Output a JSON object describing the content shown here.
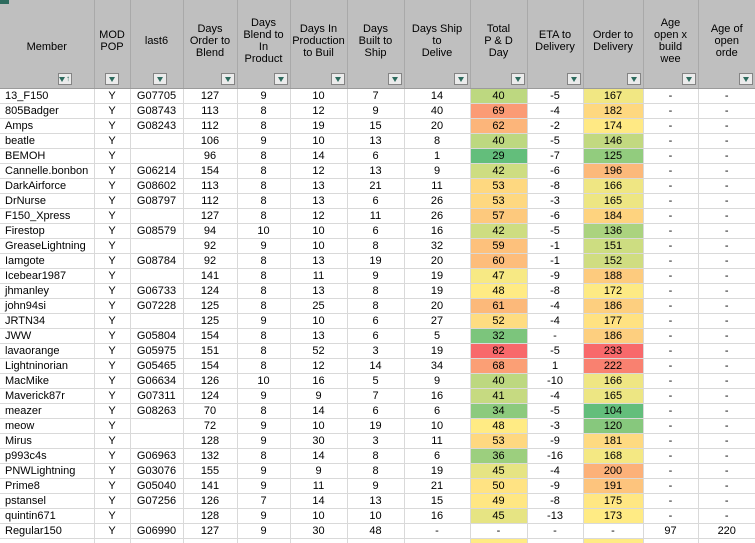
{
  "header": {
    "columns": [
      {
        "key": "member",
        "label": "Member",
        "sorted_ascending": true
      },
      {
        "key": "mod_pop",
        "label": "MOD\nPOP"
      },
      {
        "key": "last6",
        "label": "last6"
      },
      {
        "key": "days_order_to_blend",
        "label": "Days\nOrder to\nBlend"
      },
      {
        "key": "days_blend_to_in_production",
        "label": "Days\nBlend to\nIn\nProduct"
      },
      {
        "key": "days_in_production_to_build",
        "label": "Days In\nProduction\nto Buil"
      },
      {
        "key": "days_built_to_ship",
        "label": "Days\nBuilt to\nShip"
      },
      {
        "key": "days_ship_to_deliver",
        "label": "Days Ship\nto\nDelive"
      },
      {
        "key": "total_pd_days",
        "label": "Total\nP & D\nDay"
      },
      {
        "key": "eta_to_delivery",
        "label": "ETA to\nDelivery"
      },
      {
        "key": "order_to_delivery",
        "label": "Order to\nDelivery"
      },
      {
        "key": "age_open_x_build_weeks",
        "label": "Age\nopen x\nbuild\nwee"
      },
      {
        "key": "age_of_open_orders",
        "label": "Age of\nopen\norde"
      }
    ]
  },
  "colors": {
    "header_bg": "#BFBFBF",
    "teal_accent": "#2E6B5E",
    "gridline": "#D9D9D9",
    "scale_min_color": "#63BE7B",
    "scale_mid_color": "#FFEB84",
    "scale_max_color": "#F8696B"
  },
  "conditional_scales": {
    "total_pd_days": {
      "col": 8,
      "min": 29,
      "mid": 48,
      "max": 82
    },
    "order_to_delivery": {
      "col": 10,
      "min": 104,
      "mid": 173,
      "max": 233
    }
  },
  "rows": [
    [
      "13_F150",
      "Y",
      "G07705",
      127,
      9,
      10,
      7,
      14,
      40,
      -5,
      167,
      "-",
      "-"
    ],
    [
      "805Badger",
      "Y",
      "G08743",
      113,
      8,
      12,
      9,
      40,
      69,
      -4,
      182,
      "-",
      "-"
    ],
    [
      "Amps",
      "Y",
      "G08243",
      112,
      8,
      19,
      15,
      20,
      62,
      -2,
      174,
      "-",
      "-"
    ],
    [
      "beatle",
      "Y",
      "",
      106,
      9,
      10,
      13,
      8,
      40,
      -5,
      146,
      "-",
      "-"
    ],
    [
      "BEMOH",
      "Y",
      "",
      96,
      8,
      14,
      6,
      1,
      29,
      -7,
      125,
      "-",
      "-"
    ],
    [
      "Cannelle.bonbon",
      "Y",
      "G06214",
      154,
      8,
      12,
      13,
      9,
      42,
      -6,
      196,
      "-",
      "-"
    ],
    [
      "DarkAirforce",
      "Y",
      "G08602",
      113,
      8,
      13,
      21,
      11,
      53,
      -8,
      166,
      "-",
      "-"
    ],
    [
      "DrNurse",
      "Y",
      "G08797",
      112,
      8,
      13,
      6,
      26,
      53,
      -3,
      165,
      "-",
      "-"
    ],
    [
      "F150_Xpress",
      "Y",
      "",
      127,
      8,
      12,
      11,
      26,
      57,
      -6,
      184,
      "-",
      "-"
    ],
    [
      "Firestop",
      "Y",
      "G08579",
      94,
      10,
      10,
      6,
      16,
      42,
      -5,
      136,
      "-",
      "-"
    ],
    [
      "GreaseLightning",
      "Y",
      "",
      92,
      9,
      10,
      8,
      32,
      59,
      -1,
      151,
      "-",
      "-"
    ],
    [
      "Iamgote",
      "Y",
      "G08784",
      92,
      8,
      13,
      19,
      20,
      60,
      -1,
      152,
      "-",
      "-"
    ],
    [
      "Icebear1987",
      "Y",
      "",
      141,
      8,
      11,
      9,
      19,
      47,
      -9,
      188,
      "-",
      "-"
    ],
    [
      "jhmanley",
      "Y",
      "G06733",
      124,
      8,
      13,
      8,
      19,
      48,
      -8,
      172,
      "-",
      "-"
    ],
    [
      "john94si",
      "Y",
      "G07228",
      125,
      8,
      25,
      8,
      20,
      61,
      -4,
      186,
      "-",
      "-"
    ],
    [
      "JRTN34",
      "Y",
      "",
      125,
      9,
      10,
      6,
      27,
      52,
      -4,
      177,
      "-",
      "-"
    ],
    [
      "JWW",
      "Y",
      "G05804",
      154,
      8,
      13,
      6,
      5,
      32,
      "-",
      186,
      "-",
      "-"
    ],
    [
      "lavaorange",
      "Y",
      "G05975",
      151,
      8,
      52,
      3,
      19,
      82,
      -5,
      233,
      "-",
      "-"
    ],
    [
      "Lightninorian",
      "Y",
      "G05465",
      154,
      8,
      12,
      14,
      34,
      68,
      1,
      222,
      "-",
      "-"
    ],
    [
      "MacMike",
      "Y",
      "G06634",
      126,
      10,
      16,
      5,
      9,
      40,
      -10,
      166,
      "-",
      "-"
    ],
    [
      "Maverick87r",
      "Y",
      "G07311",
      124,
      9,
      9,
      7,
      16,
      41,
      -4,
      165,
      "-",
      "-"
    ],
    [
      "meazer",
      "Y",
      "G08263",
      70,
      8,
      14,
      6,
      6,
      34,
      -5,
      104,
      "-",
      "-"
    ],
    [
      "meow",
      "Y",
      "",
      72,
      9,
      10,
      19,
      10,
      48,
      -3,
      120,
      "-",
      "-"
    ],
    [
      "Mirus",
      "Y",
      "",
      128,
      9,
      30,
      3,
      11,
      53,
      -9,
      181,
      "-",
      "-"
    ],
    [
      "p993c4s",
      "Y",
      "G06963",
      132,
      8,
      14,
      8,
      6,
      36,
      -16,
      168,
      "-",
      "-"
    ],
    [
      "PNWLightning",
      "Y",
      "G03076",
      155,
      9,
      9,
      8,
      19,
      45,
      -4,
      200,
      "-",
      "-"
    ],
    [
      "Prime8",
      "Y",
      "G05040",
      141,
      9,
      11,
      9,
      21,
      50,
      -9,
      191,
      "-",
      "-"
    ],
    [
      "pstansel",
      "Y",
      "G07256",
      126,
      7,
      14,
      13,
      15,
      49,
      -8,
      175,
      "-",
      "-"
    ],
    [
      "quintin671",
      "Y",
      "",
      128,
      9,
      10,
      10,
      16,
      45,
      -13,
      173,
      "-",
      "-"
    ],
    [
      "Regular150",
      "Y",
      "G06990",
      127,
      9,
      30,
      48,
      "-",
      "-",
      "-",
      "-",
      97,
      220
    ]
  ],
  "partial_row": {
    "cell_colors": {
      "8": "#FFEB84",
      "10": "#FFEB84"
    }
  }
}
